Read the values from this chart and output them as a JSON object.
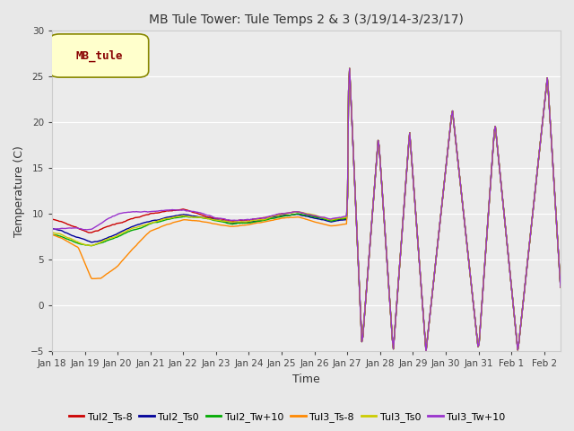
{
  "title": "MB Tule Tower: Tule Temps 2 & 3 (3/19/14-3/23/17)",
  "ylabel": "Temperature (C)",
  "xlabel": "Time",
  "ylim": [
    -5,
    30
  ],
  "yticks": [
    -5,
    0,
    5,
    10,
    15,
    20,
    25,
    30
  ],
  "xtick_labels": [
    "Jan 18",
    "Jan 19",
    "Jan 20",
    "Jan 21",
    "Jan 22",
    "Jan 23",
    "Jan 24",
    "Jan 25",
    "Jan 26",
    "Jan 27",
    "Jan 28",
    "Jan 29",
    "Jan 30",
    "Jan 31",
    "Feb 1",
    "Feb 2"
  ],
  "bg_color": "#e8e8e8",
  "plot_bg_color": "#ebebeb",
  "grid_color": "#ffffff",
  "series_colors": {
    "Tul2_Ts-8": "#cc0000",
    "Tul2_Ts0": "#000099",
    "Tul2_Tw+10": "#00aa00",
    "Tul3_Ts-8": "#ff8800",
    "Tul3_Ts0": "#cccc00",
    "Tul3_Tw+10": "#9933cc"
  },
  "legend_label_box": "MB_tule",
  "legend_label_box_color": "#880000",
  "legend_label_box_bg": "#ffffcc",
  "legend_label_box_edge": "#888800"
}
